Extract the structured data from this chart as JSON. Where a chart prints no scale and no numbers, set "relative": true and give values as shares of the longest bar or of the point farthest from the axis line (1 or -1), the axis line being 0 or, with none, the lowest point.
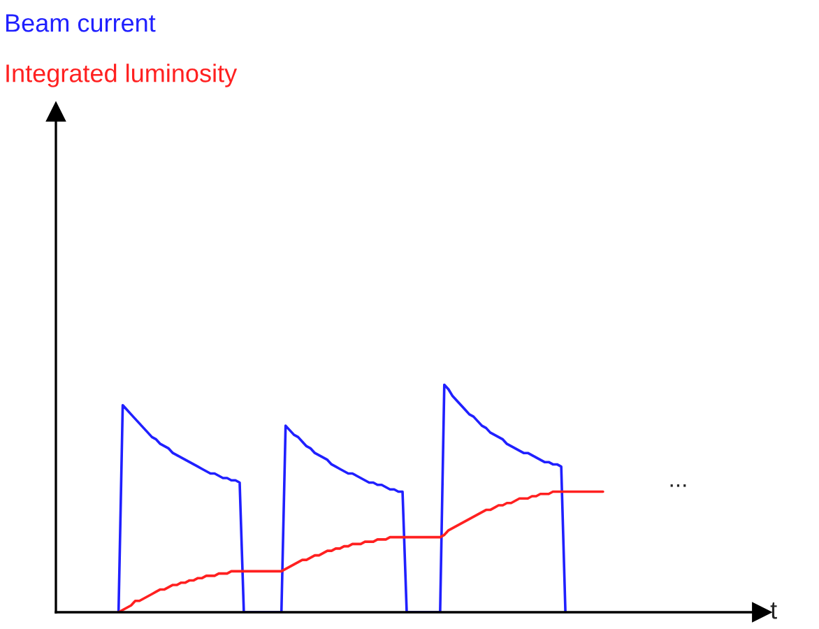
{
  "chart_data": {
    "type": "line",
    "relative": true,
    "legend": "top left",
    "categories": [
      null,
      null,
      null,
      null,
      null,
      null,
      null,
      null,
      null,
      null,
      null,
      null,
      null,
      null,
      null,
      null,
      null,
      null,
      null,
      null,
      null,
      null,
      null,
      null,
      null,
      null,
      null,
      null,
      null,
      null,
      null,
      null,
      null,
      null,
      null,
      null,
      null,
      null,
      null,
      null,
      null,
      null,
      null,
      null,
      null,
      null,
      null,
      null,
      null,
      null,
      null,
      null,
      null,
      null,
      null,
      null,
      null,
      null,
      null,
      null,
      null,
      null,
      null,
      null,
      null,
      null,
      null,
      null,
      null,
      null,
      null,
      null,
      null,
      null,
      null,
      null,
      null,
      null,
      null,
      null,
      null,
      null,
      null,
      null,
      null,
      null,
      null,
      null,
      null,
      null,
      null,
      null,
      null,
      null,
      null,
      null,
      null,
      null,
      null,
      null,
      null,
      null,
      null,
      null,
      null,
      null,
      null,
      null,
      null,
      null,
      null,
      null,
      null,
      null,
      null,
      null,
      null
    ],
    "series": [
      {
        "name": "Beam current",
        "color": "#2020ff",
        "values": [
          0,
          0.91,
          0.89,
          0.87,
          0.85,
          0.83,
          0.81,
          0.79,
          0.77,
          0.76,
          0.74,
          0.73,
          0.72,
          0.7,
          0.69,
          0.68,
          0.67,
          0.66,
          0.65,
          0.64,
          0.63,
          0.62,
          0.61,
          0.61,
          0.6,
          0.59,
          0.59,
          0.58,
          0.58,
          0.57,
          0,
          0,
          0,
          0,
          0,
          0,
          0,
          0,
          0,
          0,
          0.82,
          0.8,
          0.78,
          0.77,
          0.75,
          0.73,
          0.72,
          0.7,
          0.69,
          0.68,
          0.67,
          0.65,
          0.64,
          0.63,
          0.62,
          0.61,
          0.61,
          0.6,
          0.59,
          0.58,
          0.57,
          0.57,
          0.56,
          0.56,
          0.55,
          0.54,
          0.54,
          0.53,
          0.53,
          0,
          0,
          0,
          0,
          0,
          0,
          0,
          0,
          0,
          1.0,
          0.98,
          0.95,
          0.93,
          0.91,
          0.89,
          0.87,
          0.86,
          0.84,
          0.82,
          0.81,
          0.79,
          0.78,
          0.77,
          0.76,
          0.74,
          0.73,
          0.72,
          0.71,
          0.7,
          0.7,
          0.69,
          0.68,
          0.67,
          0.66,
          0.66,
          0.65,
          0.65,
          0.64,
          0,
          null,
          null,
          null,
          null,
          null,
          null,
          null,
          null,
          null
        ]
      },
      {
        "name": "Integrated luminosity",
        "color": "#ff2020",
        "values": [
          0,
          0.01,
          0.02,
          0.03,
          0.05,
          0.05,
          0.06,
          0.07,
          0.08,
          0.09,
          0.1,
          0.1,
          0.11,
          0.12,
          0.12,
          0.13,
          0.13,
          0.14,
          0.14,
          0.15,
          0.15,
          0.16,
          0.16,
          0.16,
          0.17,
          0.17,
          0.17,
          0.18,
          0.18,
          0.18,
          0.18,
          0.18,
          0.18,
          0.18,
          0.18,
          0.18,
          0.18,
          0.18,
          0.18,
          0.18,
          0.19,
          0.2,
          0.21,
          0.22,
          0.23,
          0.23,
          0.24,
          0.25,
          0.25,
          0.26,
          0.27,
          0.27,
          0.28,
          0.28,
          0.29,
          0.29,
          0.3,
          0.3,
          0.3,
          0.31,
          0.31,
          0.31,
          0.32,
          0.32,
          0.32,
          0.33,
          0.33,
          0.33,
          0.33,
          0.33,
          0.33,
          0.33,
          0.33,
          0.33,
          0.33,
          0.33,
          0.33,
          0.33,
          0.34,
          0.36,
          0.37,
          0.38,
          0.39,
          0.4,
          0.41,
          0.42,
          0.43,
          0.44,
          0.45,
          0.45,
          0.46,
          0.47,
          0.47,
          0.48,
          0.48,
          0.49,
          0.5,
          0.5,
          0.5,
          0.51,
          0.51,
          0.52,
          0.52,
          0.52,
          0.53,
          0.53,
          0.53,
          0.53,
          0.53,
          0.53,
          0.53,
          0.53,
          0.53,
          0.53,
          0.53,
          0.53,
          0.53
        ]
      }
    ],
    "annotations": [
      "...",
      "t"
    ]
  }
}
